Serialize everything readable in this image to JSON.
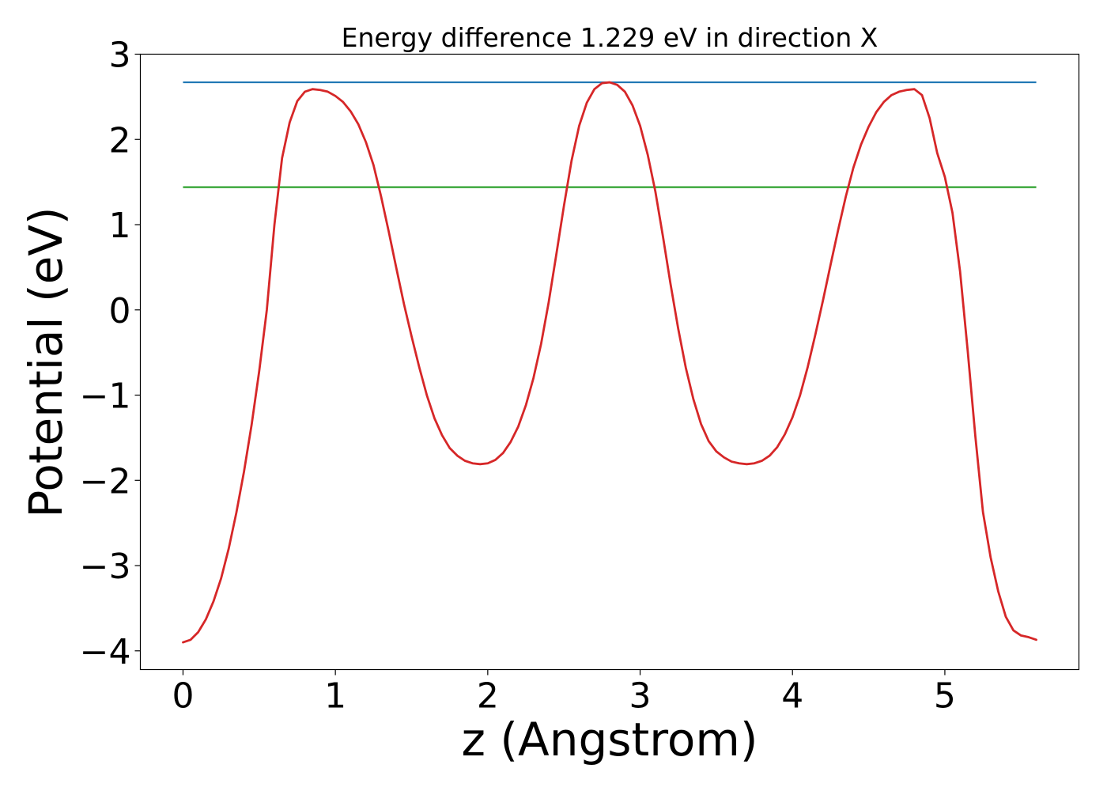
{
  "chart_data": {
    "type": "line",
    "title": "Energy difference 1.229 eV in direction X",
    "xlabel": "z (Angstrom)",
    "ylabel": "Potential (eV)",
    "xlim": [
      -0.28,
      5.88
    ],
    "ylim": [
      -4.22,
      3.0
    ],
    "xticks": [
      0,
      1,
      2,
      3,
      4,
      5
    ],
    "xtick_labels": [
      "0",
      "1",
      "2",
      "3",
      "4",
      "5"
    ],
    "yticks": [
      3,
      2,
      1,
      0,
      -1,
      -2,
      -3,
      -4
    ],
    "ytick_labels": [
      "3",
      "2",
      "1",
      "0",
      "−1",
      "−2",
      "−3",
      "−4"
    ],
    "grid": false,
    "series": [
      {
        "kind": "hline",
        "color": "#1f77b4",
        "y": 2.67,
        "x_range": [
          0,
          5.6
        ]
      },
      {
        "kind": "hline",
        "color": "#2ca02c",
        "y": 1.44,
        "x_range": [
          0,
          5.6
        ]
      },
      {
        "kind": "curve",
        "color": "#d62728",
        "points": [
          [
            0.0,
            -3.9
          ],
          [
            0.05,
            -3.87
          ],
          [
            0.1,
            -3.78
          ],
          [
            0.15,
            -3.63
          ],
          [
            0.2,
            -3.42
          ],
          [
            0.25,
            -3.15
          ],
          [
            0.3,
            -2.8
          ],
          [
            0.35,
            -2.38
          ],
          [
            0.4,
            -1.9
          ],
          [
            0.45,
            -1.35
          ],
          [
            0.5,
            -0.72
          ],
          [
            0.55,
            0.0
          ],
          [
            0.6,
            1.0
          ],
          [
            0.65,
            1.78
          ],
          [
            0.7,
            2.2
          ],
          [
            0.75,
            2.45
          ],
          [
            0.8,
            2.56
          ],
          [
            0.85,
            2.59
          ],
          [
            0.9,
            2.58
          ],
          [
            0.95,
            2.56
          ],
          [
            1.0,
            2.51
          ],
          [
            1.05,
            2.44
          ],
          [
            1.1,
            2.33
          ],
          [
            1.15,
            2.18
          ],
          [
            1.2,
            1.97
          ],
          [
            1.25,
            1.7
          ],
          [
            1.3,
            1.33
          ],
          [
            1.35,
            0.92
          ],
          [
            1.4,
            0.49
          ],
          [
            1.45,
            0.07
          ],
          [
            1.5,
            -0.31
          ],
          [
            1.55,
            -0.67
          ],
          [
            1.6,
            -1.0
          ],
          [
            1.65,
            -1.27
          ],
          [
            1.7,
            -1.47
          ],
          [
            1.75,
            -1.62
          ],
          [
            1.8,
            -1.71
          ],
          [
            1.85,
            -1.77
          ],
          [
            1.9,
            -1.8
          ],
          [
            1.95,
            -1.81
          ],
          [
            2.0,
            -1.8
          ],
          [
            2.05,
            -1.76
          ],
          [
            2.1,
            -1.68
          ],
          [
            2.15,
            -1.55
          ],
          [
            2.2,
            -1.37
          ],
          [
            2.25,
            -1.12
          ],
          [
            2.3,
            -0.8
          ],
          [
            2.35,
            -0.4
          ],
          [
            2.4,
            0.09
          ],
          [
            2.45,
            0.65
          ],
          [
            2.5,
            1.22
          ],
          [
            2.55,
            1.75
          ],
          [
            2.6,
            2.16
          ],
          [
            2.65,
            2.43
          ],
          [
            2.7,
            2.59
          ],
          [
            2.75,
            2.66
          ],
          [
            2.8,
            2.67
          ],
          [
            2.85,
            2.64
          ],
          [
            2.9,
            2.56
          ],
          [
            2.95,
            2.4
          ],
          [
            3.0,
            2.16
          ],
          [
            3.05,
            1.82
          ],
          [
            3.1,
            1.39
          ],
          [
            3.15,
            0.86
          ],
          [
            3.2,
            0.3
          ],
          [
            3.25,
            -0.22
          ],
          [
            3.3,
            -0.68
          ],
          [
            3.35,
            -1.05
          ],
          [
            3.4,
            -1.34
          ],
          [
            3.45,
            -1.54
          ],
          [
            3.5,
            -1.66
          ],
          [
            3.55,
            -1.73
          ],
          [
            3.6,
            -1.78
          ],
          [
            3.65,
            -1.8
          ],
          [
            3.7,
            -1.81
          ],
          [
            3.75,
            -1.8
          ],
          [
            3.8,
            -1.77
          ],
          [
            3.85,
            -1.71
          ],
          [
            3.9,
            -1.61
          ],
          [
            3.95,
            -1.46
          ],
          [
            4.0,
            -1.26
          ],
          [
            4.05,
            -1.0
          ],
          [
            4.1,
            -0.67
          ],
          [
            4.15,
            -0.29
          ],
          [
            4.2,
            0.11
          ],
          [
            4.25,
            0.53
          ],
          [
            4.3,
            0.94
          ],
          [
            4.35,
            1.33
          ],
          [
            4.4,
            1.67
          ],
          [
            4.45,
            1.94
          ],
          [
            4.5,
            2.15
          ],
          [
            4.55,
            2.32
          ],
          [
            4.6,
            2.44
          ],
          [
            4.65,
            2.52
          ],
          [
            4.7,
            2.56
          ],
          [
            4.75,
            2.58
          ],
          [
            4.8,
            2.59
          ],
          [
            4.85,
            2.52
          ],
          [
            4.9,
            2.25
          ],
          [
            4.95,
            1.84
          ],
          [
            5.0,
            1.56
          ],
          [
            5.05,
            1.14
          ],
          [
            5.1,
            0.45
          ],
          [
            5.15,
            -0.48
          ],
          [
            5.2,
            -1.48
          ],
          [
            5.25,
            -2.37
          ],
          [
            5.3,
            -2.9
          ],
          [
            5.35,
            -3.3
          ],
          [
            5.4,
            -3.6
          ],
          [
            5.45,
            -3.76
          ],
          [
            5.5,
            -3.82
          ],
          [
            5.55,
            -3.84
          ],
          [
            5.6,
            -3.87
          ]
        ]
      }
    ]
  }
}
